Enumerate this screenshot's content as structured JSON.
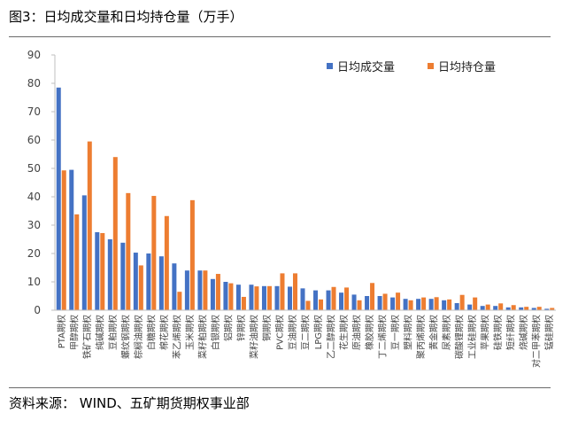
{
  "title": "图3：日均成交量和日均持仓量（万手）",
  "source": "资料来源：  WIND、五矿期货期权事业部",
  "colors": {
    "volume": "#4472C4",
    "open_interest": "#ED7D31",
    "axis": "#BFBFBF"
  },
  "chart_data": {
    "type": "bar",
    "ylim": [
      0,
      90
    ],
    "yticks": [
      0,
      10,
      20,
      30,
      40,
      50,
      60,
      70,
      80,
      90
    ],
    "grid": false,
    "legend": "top-right",
    "categories": [
      "PTA期权",
      "甲醇期权",
      "铁矿石期权",
      "纯碱期权",
      "豆粕期权",
      "螺纹钢期权",
      "棕榈油期权",
      "白糖期权",
      "棉花期权",
      "苯乙烯期权",
      "玉米期权",
      "菜籽粕期权",
      "白银期权",
      "铝期权",
      "锌期权",
      "菜籽油期权",
      "铜期权",
      "PVC期权",
      "豆油期权",
      "豆二期权",
      "LPG期权",
      "乙二醇期权",
      "花生期权",
      "原油期权",
      "橡胶期权",
      "丁二烯期权",
      "豆一期权",
      "塑料期权",
      "聚丙烯期权",
      "黄金期权",
      "尿素期权",
      "碳酸锂期权",
      "工业硅期权",
      "苹果期权",
      "硅铁期权",
      "短纤期权",
      "烧碱期权",
      "对二甲苯期权",
      "锰硅期权"
    ],
    "series": [
      {
        "name": "日均成交量",
        "values": [
          78.5,
          49.5,
          40.5,
          27.5,
          25,
          23.8,
          20.3,
          20,
          19,
          16.5,
          14,
          14,
          11,
          10,
          9,
          9,
          8.5,
          8.5,
          8.3,
          7.7,
          7,
          7,
          6.2,
          5.5,
          5,
          5,
          4.5,
          4,
          4,
          4,
          3.5,
          2.5,
          2,
          1.5,
          1.5,
          1,
          1,
          0.8,
          0.5
        ]
      },
      {
        "name": "日均持仓量",
        "values": [
          49.3,
          33.8,
          59.5,
          27.2,
          54,
          41.3,
          15.8,
          40.3,
          33.2,
          6.5,
          38.8,
          14,
          12.8,
          9.5,
          4.7,
          8.4,
          8.5,
          13,
          13,
          3.3,
          3.8,
          8.2,
          8,
          3.5,
          9.6,
          5.8,
          6.2,
          3.5,
          4.5,
          4.6,
          3.8,
          5.4,
          4.5,
          2,
          2.4,
          1.8,
          1.2,
          1.2,
          0.8
        ]
      }
    ]
  }
}
